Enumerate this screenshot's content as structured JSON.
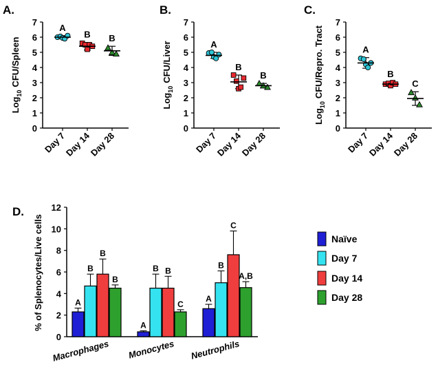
{
  "colors": {
    "day7": "#2ec4d6",
    "day14": "#e8292f",
    "day28": "#2e8a2e",
    "naive": "#1f1fd6",
    "bar_day7": "#35e3f0",
    "bar_day14": "#f03e3e",
    "bar_day28": "#2ea02e"
  },
  "chart_data": [
    {
      "panel": "A.",
      "type": "scatter",
      "ylabel_sub": "10",
      "ylabel_prefix": "Log",
      "ylabel_suffix": "CFU/Spleen",
      "ylim": [
        0,
        7
      ],
      "yticks": [
        "0",
        "1",
        "2",
        "3",
        "4",
        "5",
        "6",
        "7"
      ],
      "categories": [
        "Day 7",
        "Day 14",
        "Day 28"
      ],
      "means": [
        6.0,
        5.4,
        5.1
      ],
      "sd": [
        0.1,
        0.25,
        0.3
      ],
      "points": [
        [
          6.0,
          6.05,
          5.95,
          5.9,
          6.1
        ],
        [
          5.6,
          5.5,
          5.2,
          5.5,
          5.4
        ],
        [
          5.3,
          5.0,
          4.9
        ]
      ],
      "letters": [
        "A",
        "B",
        "B"
      ],
      "markers": [
        "circle",
        "square",
        "triangle"
      ]
    },
    {
      "panel": "B.",
      "type": "scatter",
      "ylabel_sub": "10",
      "ylabel_prefix": "Log",
      "ylabel_suffix": "CFU/Liver",
      "ylim": [
        0,
        7
      ],
      "yticks": [
        "0",
        "1",
        "2",
        "3",
        "4",
        "5",
        "6",
        "7"
      ],
      "categories": [
        "Day 7",
        "Day 14",
        "Day 28"
      ],
      "means": [
        4.8,
        3.05,
        2.8
      ],
      "sd": [
        0.2,
        0.45,
        0.15
      ],
      "points": [
        [
          4.95,
          5.0,
          4.7,
          4.6,
          4.85
        ],
        [
          3.5,
          3.1,
          2.6,
          2.7,
          3.3
        ],
        [
          2.95,
          2.8,
          2.7
        ]
      ],
      "letters": [
        "A",
        "B",
        "B"
      ],
      "markers": [
        "circle",
        "square",
        "triangle"
      ]
    },
    {
      "panel": "C.",
      "type": "scatter",
      "ylabel_sub": "10",
      "ylabel_prefix": "Log",
      "ylabel_suffix": "CFU/Repro. Tract",
      "ylim": [
        0,
        7
      ],
      "yticks": [
        "0",
        "1",
        "2",
        "3",
        "4",
        "5",
        "6",
        "7"
      ],
      "categories": [
        "Day 7",
        "Day 14",
        "Day 28"
      ],
      "means": [
        4.3,
        2.9,
        1.95
      ],
      "sd": [
        0.35,
        0.15,
        0.45
      ],
      "points": [
        [
          4.6,
          4.55,
          4.2,
          4.0,
          4.3
        ],
        [
          2.9,
          2.95,
          2.8,
          3.0,
          2.9
        ],
        [
          2.35,
          2.0,
          1.55
        ]
      ],
      "letters": [
        "A",
        "B",
        "C"
      ],
      "markers": [
        "circle",
        "square",
        "triangle"
      ]
    },
    {
      "panel": "D.",
      "type": "bar",
      "ylabel": "% of Splenocytes/Live cells",
      "ylim": [
        0,
        12
      ],
      "yticks": [
        "0",
        "2",
        "4",
        "6",
        "8",
        "10",
        "12"
      ],
      "categories": [
        "Macrophages",
        "Monocytes",
        "Neutrophils"
      ],
      "series": [
        {
          "name": "Naïve",
          "values": [
            2.3,
            0.45,
            2.6
          ],
          "err": [
            0.35,
            0.1,
            0.4
          ],
          "letters": [
            "A",
            "A",
            "A"
          ]
        },
        {
          "name": "Day 7",
          "values": [
            4.7,
            4.5,
            5.0
          ],
          "err": [
            1.1,
            1.3,
            1.1
          ],
          "letters": [
            "B",
            "B",
            "B"
          ]
        },
        {
          "name": "Day 14",
          "values": [
            5.8,
            4.5,
            7.6
          ],
          "err": [
            1.4,
            1.1,
            2.2
          ],
          "letters": [
            "B",
            "B",
            "C"
          ]
        },
        {
          "name": "Day 28",
          "values": [
            4.5,
            2.3,
            4.55
          ],
          "err": [
            0.3,
            0.2,
            0.55
          ],
          "letters": [
            "B",
            "C",
            "A,B"
          ]
        }
      ],
      "legend": [
        "Naïve",
        "Day 7",
        "Day 14",
        "Day 28"
      ],
      "legend_position": "right"
    }
  ]
}
